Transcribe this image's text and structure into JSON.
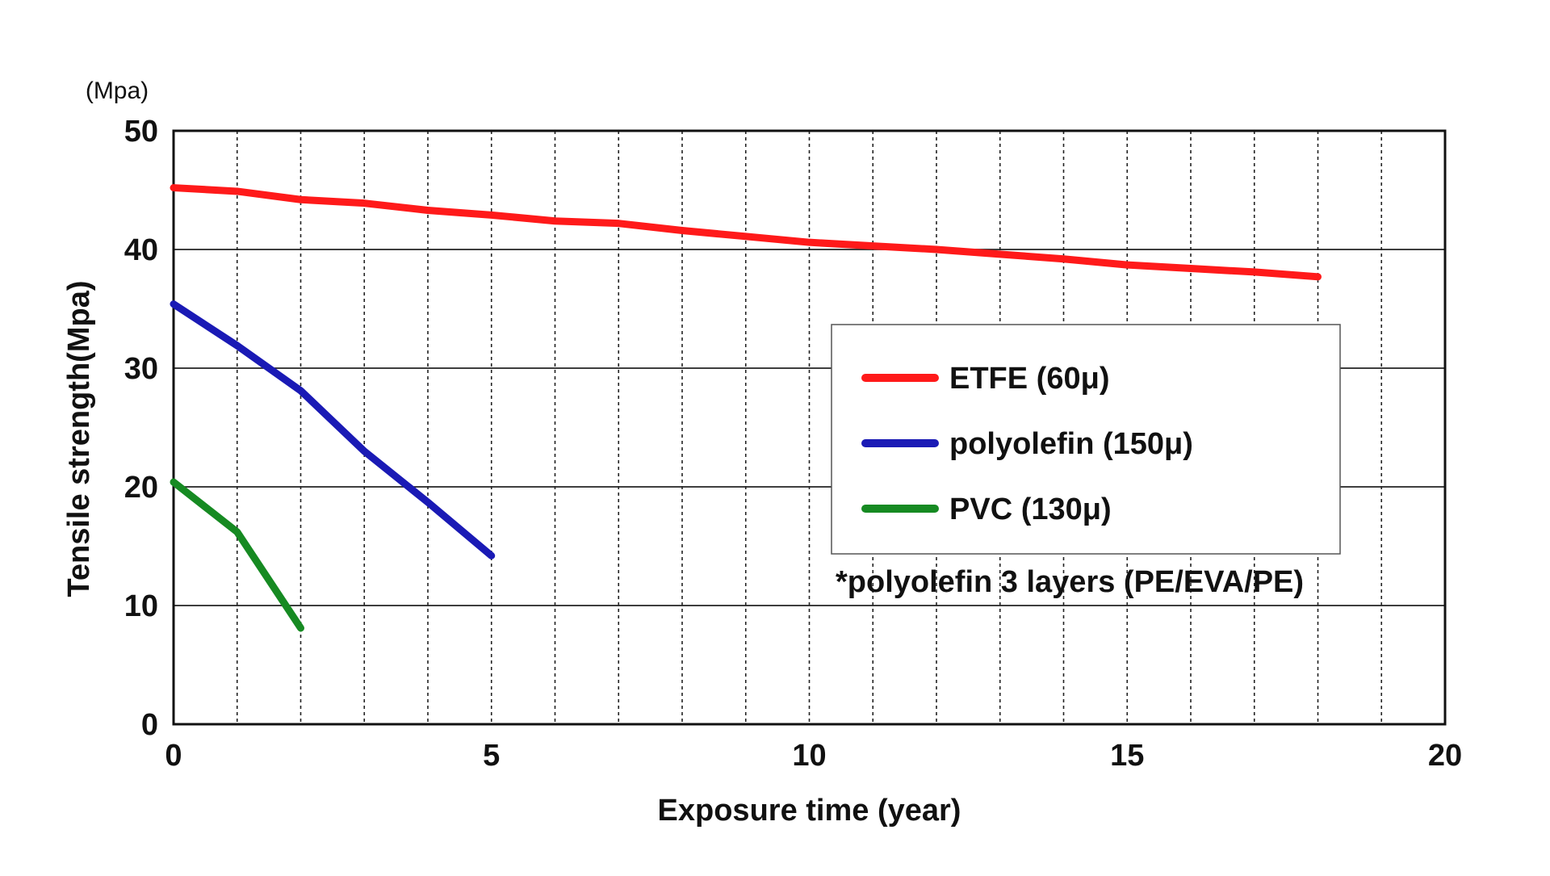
{
  "chart_data": {
    "type": "line",
    "title": "",
    "xlabel": "Exposure time (year)",
    "ylabel": "Tensile strength(Mpa)",
    "y_unit_label": "(Mpa)",
    "xlim": [
      0,
      20
    ],
    "ylim": [
      0,
      50
    ],
    "x_ticks": [
      "0",
      "5",
      "10",
      "15",
      "20"
    ],
    "y_ticks": [
      "0",
      "10",
      "20",
      "30",
      "40",
      "50"
    ],
    "x_minor_grid_step": 1,
    "y_grid_step": 10,
    "grid": true,
    "x_grid_style": "dotted",
    "y_grid_style": "solid",
    "legend_position": "right",
    "series": [
      {
        "name": "ETFE (60μ)",
        "color": "#ff1a1a",
        "x": [
          0,
          1,
          2,
          3,
          4,
          5,
          6,
          7,
          8,
          9,
          10,
          11,
          12,
          13,
          14,
          15,
          16,
          17,
          18
        ],
        "y": [
          45.2,
          44.9,
          44.2,
          43.9,
          43.3,
          42.9,
          42.4,
          42.2,
          41.6,
          41.1,
          40.6,
          40.3,
          40.0,
          39.6,
          39.2,
          38.7,
          38.4,
          38.1,
          37.7
        ]
      },
      {
        "name": "polyolefin (150μ)",
        "color": "#1a1ab5",
        "x": [
          0,
          1,
          2,
          3,
          4,
          5
        ],
        "y": [
          35.4,
          31.9,
          28.1,
          23.0,
          18.7,
          14.2
        ]
      },
      {
        "name": "PVC (130μ)",
        "color": "#168a22",
        "x": [
          0,
          1,
          2
        ],
        "y": [
          20.4,
          16.2,
          8.1
        ]
      }
    ],
    "annotations": [
      "*polyolefin 3 layers (PE/EVA/PE)"
    ]
  }
}
